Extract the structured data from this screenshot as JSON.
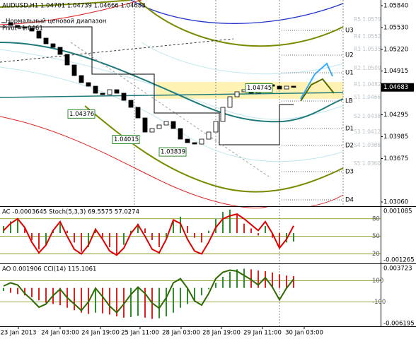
{
  "chart_data": [
    {
      "type": "candlestick",
      "title": "AUDUSD,H1 1.04701 1.04739 1.04666 1.04683",
      "annotations": [
        "Нормальный ценовой диапазон",
        "Pivot=1.0461"
      ],
      "xlim": [
        -0.5,
        53.3
      ],
      "xticks": [
        {
          "value": 2.1,
          "label": "23 Jan 2013"
        },
        {
          "value": 8,
          "label": "24 Jan 03:00"
        },
        {
          "value": 13.7,
          "label": "24 Jan 19:00"
        },
        {
          "value": 19.3,
          "label": "25 Jan 11:00"
        },
        {
          "value": 25.1,
          "label": "28 Jan 03:00"
        },
        {
          "value": 30.8,
          "label": "28 Jan 19:00"
        },
        {
          "value": 36.6,
          "label": "29 Jan 11:00"
        },
        {
          "value": 42.5,
          "label": "30 Jan 03:00"
        }
      ],
      "ylim": [
        1.03,
        1.0592
      ],
      "yticks": [
        {
          "value": 1.0584,
          "label": "1.05840"
        },
        {
          "value": 1.0553,
          "label": "1.05530"
        },
        {
          "value": 1.0522,
          "label": "1.05220"
        },
        {
          "value": 1.04915,
          "label": "1.04915"
        },
        {
          "value": 1.04295,
          "label": "1.04295"
        },
        {
          "value": 1.03985,
          "label": "1.03985"
        },
        {
          "value": 1.03675,
          "label": "1.03675"
        },
        {
          "value": 1.0306,
          "label": "1.03060"
        }
      ],
      "series": [
        {
          "color": "#000000",
          "up_color": "#ffffff",
          "values": [
            1.056,
            1.0556,
            1.0553,
            1.0552,
            1.0548,
            1.0538,
            1.053,
            1.0525,
            1.0515,
            1.05,
            1.0485,
            1.0475,
            1.047,
            1.046,
            1.0458,
            1.0465,
            1.046,
            1.045,
            1.044,
            1.0425,
            1.0405,
            1.041,
            1.0415,
            1.042,
            1.041,
            1.0395,
            1.039,
            1.0388,
            1.0395,
            1.0405,
            1.042,
            1.044,
            1.0455,
            1.0462,
            1.0465,
            1.046,
            1.0468,
            1.0472,
            1.047,
            1.0466,
            1.047,
            1.04683
          ]
        }
      ],
      "current_price": 1.04683,
      "price_labels": [
        1.04745,
        1.04376,
        1.04015,
        1.03839
      ],
      "pivot_levels": [
        {
          "label": "U3",
          "value": 1.0549
        },
        {
          "label": "U2",
          "value": 1.0514
        },
        {
          "label": "U1",
          "value": 1.0489
        },
        {
          "label": "LB",
          "value": 1.0449
        },
        {
          "label": "D1",
          "value": 1.041
        },
        {
          "label": "D2",
          "value": 1.0386
        },
        {
          "label": "D3",
          "value": 1.0349
        },
        {
          "label": "D4",
          "value": 1.0309
        }
      ],
      "fib_labels": [
        "R5 1.0579",
        "R4 1.0552",
        "R3 1.0535",
        "R2 1.0509",
        "R1 1.0482",
        "S1 1.0466",
        "S2 1.0438",
        "S3 1.0412",
        "S4 1.0386",
        "S5 1.0360"
      ]
    },
    {
      "type": "bar",
      "title": "AC -0.0003645 Stoch(5,3,3) 69.5575 57.0274",
      "ylim": [
        -0.001265,
        0.001085
      ],
      "yticks": [
        0.001085,
        -0.001265
      ],
      "y2lim": [
        5,
        99
      ],
      "y2ticks": [
        80,
        50,
        20
      ],
      "series": [
        {
          "up_color": "#2e8b2e",
          "down_color": "#e02020",
          "values": [
            0.0003,
            0.0005,
            0.0006,
            0.0002,
            -0.0003,
            -0.0007,
            -0.0005,
            0.0001,
            0.0004,
            0.0001,
            -0.0004,
            -0.0008,
            -0.0006,
            0.0002,
            -0.0002,
            -0.0006,
            -0.0009,
            -0.0005,
            0.0001,
            0.0004,
            0.0002,
            -0.0003,
            -0.0006,
            -0.0002,
            0.0005,
            0.0007,
            0.0003,
            -0.0002,
            -0.0004,
            0.0001,
            0.0006,
            0.0009,
            0.001,
            0.0008,
            0.0004,
            0.0002,
            -0.0001,
            0.0003,
            -0.0002,
            -0.0006,
            -0.0004,
            -0.0003645
          ]
        },
        {
          "axis": "y2",
          "color": "#e00000",
          "values": [
            60,
            72,
            80,
            65,
            40,
            22,
            35,
            60,
            75,
            50,
            28,
            20,
            35,
            62,
            45,
            25,
            18,
            30,
            55,
            70,
            50,
            28,
            22,
            45,
            78,
            72,
            45,
            25,
            20,
            40,
            65,
            80,
            85,
            88,
            80,
            70,
            60,
            75,
            55,
            30,
            45,
            68
          ]
        }
      ]
    },
    {
      "type": "bar",
      "title": "AO 0.001906 CCI(14) 115.1061",
      "ylim": [
        -0.006195,
        0.003723
      ],
      "yticks": [
        0.003723,
        -0.006195
      ],
      "y2lim": [
        -330,
        250
      ],
      "y2ticks": [
        100,
        -100
      ],
      "series": [
        {
          "up_color": "#2e8b2e",
          "down_color": "#e02020",
          "values": [
            -0.0005,
            -0.0008,
            -0.001,
            -0.0012,
            -0.0015,
            -0.002,
            -0.0024,
            -0.0026,
            -0.0028,
            -0.0032,
            -0.0036,
            -0.004,
            -0.0042,
            -0.004,
            -0.0041,
            -0.0043,
            -0.0046,
            -0.0048,
            -0.0047,
            -0.0045,
            -0.0048,
            -0.005,
            -0.0049,
            -0.0046,
            -0.004,
            -0.0032,
            -0.0026,
            -0.002,
            -0.0012,
            -0.0002,
            0.0008,
            0.0018,
            0.0026,
            0.003,
            0.0031,
            0.003,
            0.0028,
            0.0027,
            0.0025,
            0.0022,
            0.002,
            0.001906
          ]
        },
        {
          "axis": "y2",
          "color": "#2e6b00",
          "values": [
            50,
            80,
            60,
            -20,
            -80,
            -150,
            -120,
            -40,
            20,
            -60,
            -120,
            -180,
            -100,
            30,
            -50,
            -140,
            -200,
            -120,
            -30,
            40,
            -20,
            -110,
            -160,
            -60,
            80,
            120,
            30,
            -90,
            -130,
            -20,
            120,
            180,
            200,
            190,
            150,
            110,
            60,
            130,
            40,
            -80,
            30,
            115.1061
          ]
        }
      ]
    }
  ]
}
